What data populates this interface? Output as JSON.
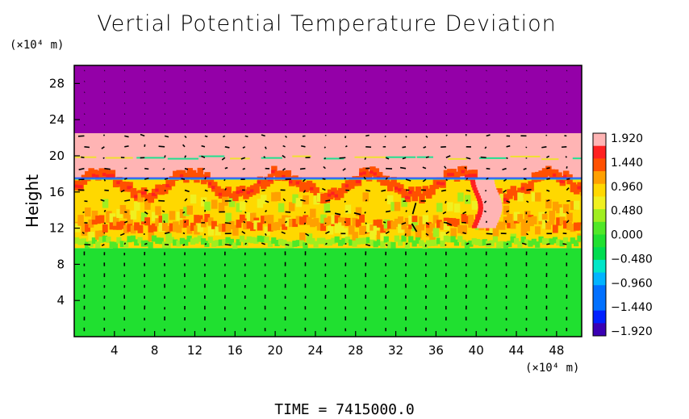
{
  "chart_data": {
    "type": "heatmap",
    "title": "Vertial Potential Temperature Deviation",
    "xlabel": "",
    "ylabel": "Height",
    "x_unit_label": "(×10⁴ m)",
    "y_unit_label": "(×10⁴ m)",
    "x_ticks": [
      4,
      8,
      12,
      16,
      20,
      24,
      28,
      32,
      36,
      40,
      44,
      48
    ],
    "y_ticks": [
      4,
      8,
      12,
      16,
      20,
      24,
      28
    ],
    "xlim": [
      0,
      50.5
    ],
    "ylim": [
      0,
      30
    ],
    "colorbar": {
      "labels": [
        "1.920",
        "1.440",
        "0.960",
        "0.480",
        "0.000",
        "-0.480",
        "-0.960",
        "-1.440",
        "-1.920"
      ],
      "range": [
        -1.92,
        1.92
      ]
    },
    "time_label": "TIME = 7415000.0",
    "layers": [
      {
        "name": "lower",
        "y_from": 0,
        "y_to": 9.8,
        "value": 0.0
      },
      {
        "name": "mixed",
        "y_from": 9.8,
        "y_to": 17.5,
        "value": 0.96
      },
      {
        "name": "upper",
        "y_from": 17.5,
        "y_to": 22.5,
        "value": 1.92
      },
      {
        "name": "top",
        "y_from": 22.5,
        "y_to": 30,
        "value": -1.92
      }
    ],
    "grid": false
  }
}
